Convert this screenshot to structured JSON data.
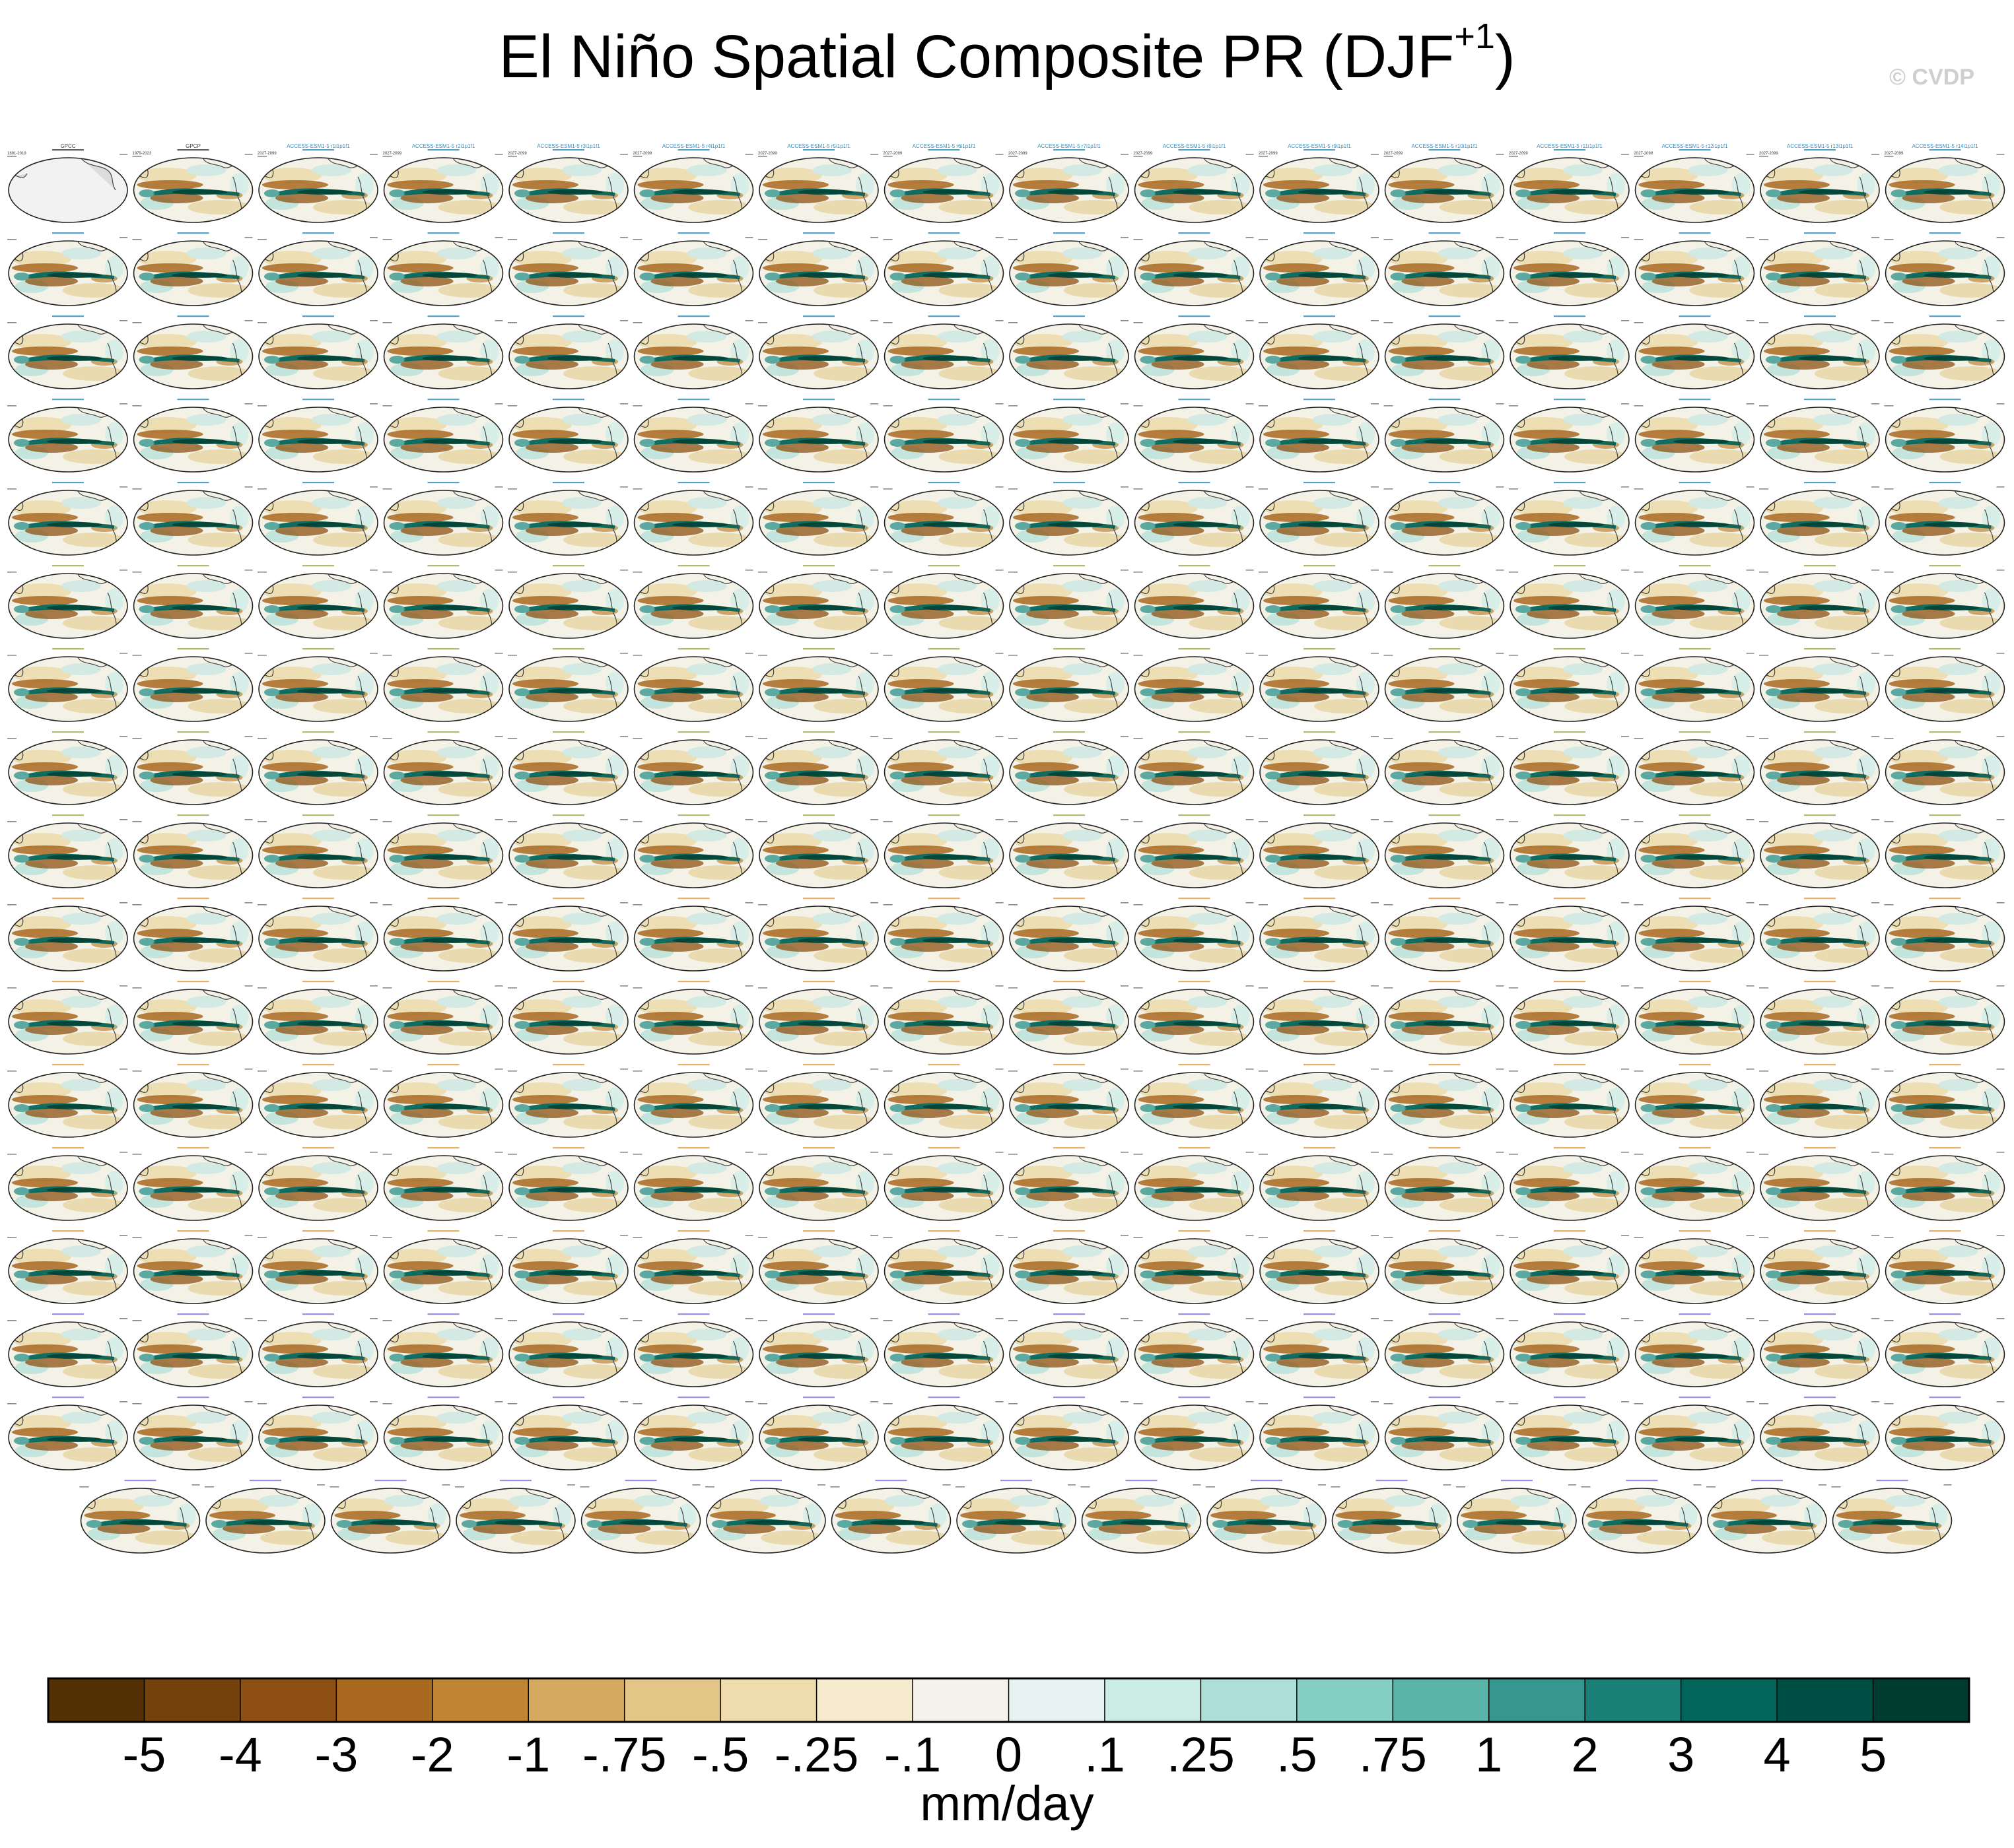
{
  "title": {
    "main": "El Niño Spatial Composite PR (DJF",
    "sup": "+1",
    "close": ")"
  },
  "copyright": "© CVDP",
  "units": "mm/day",
  "colors": {
    "brown_dark": "#543005",
    "teal_dark": "#003c30",
    "neutral": "#f5f2eb"
  },
  "chart_data": {
    "type": "heatmap",
    "description_visible": "Grid of small ellipse map panels showing PR anomaly composites",
    "panel_rows": 17,
    "panels_per_full_row": 16,
    "last_row_panels": 15,
    "panels": [
      {
        "label": "GPCC",
        "years": "1891-2019"
      },
      {
        "label": "GPCP",
        "years": "1979-2023"
      },
      {
        "label": "ACCESS-ESM1-5 r1i1p1f1",
        "years": "2027-2099"
      },
      {
        "label": "ACCESS-ESM1-5 r2i1p1f1",
        "years": "2027-2099"
      },
      {
        "label": "ACCESS-ESM1-5 r3i1p1f1",
        "years": "2027-2099"
      },
      {
        "label": "ACCESS-ESM1-5 r4i1p1f1",
        "years": "2027-2099"
      },
      {
        "label": "ACCESS-ESM1-5 r5i1p1f1",
        "years": "2027-2099"
      },
      {
        "label": "ACCESS-ESM1-5 r6i1p1f1",
        "years": "2027-2099"
      },
      {
        "label": "ACCESS-ESM1-5 r7i1p1f1",
        "years": "2027-2099"
      },
      {
        "label": "ACCESS-ESM1-5 r8i1p1f1",
        "years": "2027-2099"
      },
      {
        "label": "ACCESS-ESM1-5 r9i1p1f1",
        "years": "2027-2099"
      },
      {
        "label": "ACCESS-ESM1-5 r10i1p1f1",
        "years": "2027-2099"
      },
      {
        "label": "ACCESS-ESM1-5 r11i1p1f1",
        "years": "2027-2099"
      },
      {
        "label": "ACCESS-ESM1-5 r12i1p1f1",
        "years": "2027-2099"
      },
      {
        "label": "ACCESS-ESM1-5 r13i1p1f1",
        "years": "2027-2099"
      },
      {
        "label": "ACCESS-ESM1-5 r14i1p1f1",
        "years": "2027-2099"
      }
    ],
    "colorbar": {
      "labels": [
        "-5",
        "-4",
        "-3",
        "-2",
        "-1",
        "-.75",
        "-.5",
        "-.25",
        "-.1",
        "0",
        ".1",
        ".25",
        ".5",
        ".75",
        "1",
        "2",
        "3",
        "4",
        "5"
      ],
      "colors": [
        "#543005",
        "#74420d",
        "#8e5012",
        "#a8691f",
        "#c08534",
        "#d5a95f",
        "#e3c588",
        "#efdcac",
        "#f6ebcf",
        "#f5f2eb",
        "#e6f2ef",
        "#cbebe5",
        "#acdfd7",
        "#86cfc4",
        "#5bb4a8",
        "#35978f",
        "#1a7f77",
        "#02665c",
        "#004f45",
        "#003c30"
      ]
    }
  }
}
